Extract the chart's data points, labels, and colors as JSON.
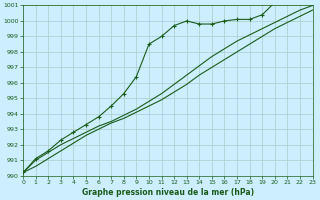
{
  "title": "Graphe pression niveau de la mer (hPa)",
  "bg_color": "#cceeff",
  "grid_color": "#aacccc",
  "line_color": "#1a5c1a",
  "xlim": [
    0,
    23
  ],
  "ylim": [
    990,
    1001
  ],
  "yticks": [
    990,
    991,
    992,
    993,
    994,
    995,
    996,
    997,
    998,
    999,
    1000,
    1001
  ],
  "xticks": [
    0,
    1,
    2,
    3,
    4,
    5,
    6,
    7,
    8,
    9,
    10,
    11,
    12,
    13,
    14,
    15,
    16,
    17,
    18,
    19,
    20,
    21,
    22,
    23
  ],
  "series1_x": [
    0,
    1,
    2,
    3,
    4,
    5,
    6,
    7,
    8,
    9,
    10,
    11,
    12,
    13,
    14,
    15,
    16,
    17,
    18,
    19,
    20,
    21,
    22,
    23
  ],
  "series1_y": [
    990.2,
    991.1,
    991.6,
    992.3,
    992.8,
    993.3,
    993.8,
    994.5,
    995.3,
    996.4,
    998.5,
    999.0,
    999.7,
    1000.0,
    999.8,
    999.8,
    1000.0,
    1000.1,
    1000.1,
    1000.4,
    1001.2,
    1001.4,
    1001.4,
    1001.2
  ],
  "series2_x": [
    0,
    1,
    2,
    3,
    4,
    5,
    6,
    7,
    8,
    9,
    10,
    11,
    12,
    13,
    14,
    15,
    16,
    17,
    18,
    19,
    20,
    21,
    22,
    23
  ],
  "series2_y": [
    990.2,
    991.0,
    991.5,
    992.0,
    992.4,
    992.8,
    993.2,
    993.5,
    993.9,
    994.3,
    994.8,
    995.3,
    995.9,
    996.5,
    997.1,
    997.7,
    998.2,
    998.7,
    999.1,
    999.5,
    999.9,
    1000.3,
    1000.7,
    1001.0
  ],
  "series3_x": [
    0,
    1,
    2,
    3,
    4,
    5,
    6,
    7,
    8,
    9,
    10,
    11,
    12,
    13,
    14,
    15,
    16,
    17,
    18,
    19,
    20,
    21,
    22,
    23
  ],
  "series3_y": [
    990.2,
    990.6,
    991.1,
    991.6,
    992.1,
    992.6,
    993.0,
    993.4,
    993.7,
    994.1,
    994.5,
    994.9,
    995.4,
    995.9,
    996.5,
    997.0,
    997.5,
    998.0,
    998.5,
    999.0,
    999.5,
    999.9,
    1000.3,
    1000.7
  ]
}
